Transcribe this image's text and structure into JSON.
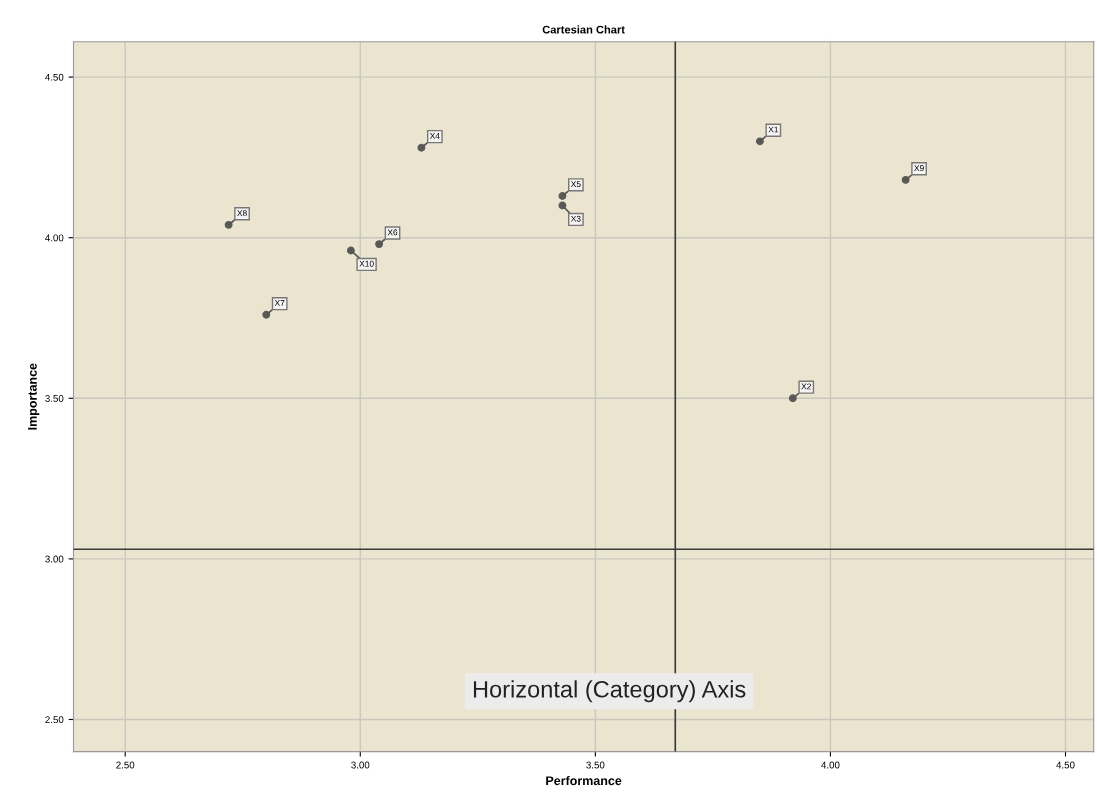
{
  "chart_data": {
    "type": "scatter",
    "title": "Cartesian Chart",
    "xlabel": "Performance",
    "ylabel": "Importance",
    "x": [
      3.85,
      3.92,
      3.43,
      3.13,
      3.43,
      3.04,
      2.8,
      2.72,
      4.16,
      2.98
    ],
    "series": [
      {
        "color": "#5a5a5a",
        "values": [
          4.3,
          3.5,
          4.1,
          4.28,
          4.13,
          3.98,
          3.76,
          4.04,
          4.18,
          3.96
        ]
      }
    ],
    "marker": "circle",
    "grid": true,
    "xlim": [
      2.39,
      4.56
    ],
    "ylim": [
      2.4,
      4.61
    ],
    "xticks": [
      {
        "value": 2.5,
        "label": "2.50"
      },
      {
        "value": 3.0,
        "label": "3.00"
      },
      {
        "value": 3.5,
        "label": "3.50"
      },
      {
        "value": 4.0,
        "label": "4.00"
      },
      {
        "value": 4.5,
        "label": "4.50"
      }
    ],
    "yticks": [
      {
        "value": 2.5,
        "label": "2.50"
      },
      {
        "value": 3.0,
        "label": "3.00"
      },
      {
        "value": 3.5,
        "label": "3.50"
      },
      {
        "value": 4.0,
        "label": "4.00"
      },
      {
        "value": 4.5,
        "label": "4.50"
      }
    ],
    "ref_lines": [
      {
        "axis": "x",
        "value": 3.67,
        "color": "#3a3a3a"
      },
      {
        "axis": "y",
        "value": 3.03,
        "color": "#3a3a3a"
      }
    ],
    "annotations": [
      {
        "text": "X1",
        "x": 3.85,
        "y": 4.3
      },
      {
        "text": "X2",
        "x": 3.92,
        "y": 3.5
      },
      {
        "text": "X3",
        "x": 3.43,
        "y": 4.1
      },
      {
        "text": "X4",
        "x": 3.13,
        "y": 4.28
      },
      {
        "text": "X5",
        "x": 3.43,
        "y": 4.13
      },
      {
        "text": "X6",
        "x": 3.04,
        "y": 3.98
      },
      {
        "text": "X7",
        "x": 2.8,
        "y": 3.76
      },
      {
        "text": "X8",
        "x": 2.72,
        "y": 4.04
      },
      {
        "text": "X9",
        "x": 4.16,
        "y": 4.18
      },
      {
        "text": "X10",
        "x": 2.98,
        "y": 3.96
      },
      "Horizontal (Category) Axis"
    ]
  }
}
